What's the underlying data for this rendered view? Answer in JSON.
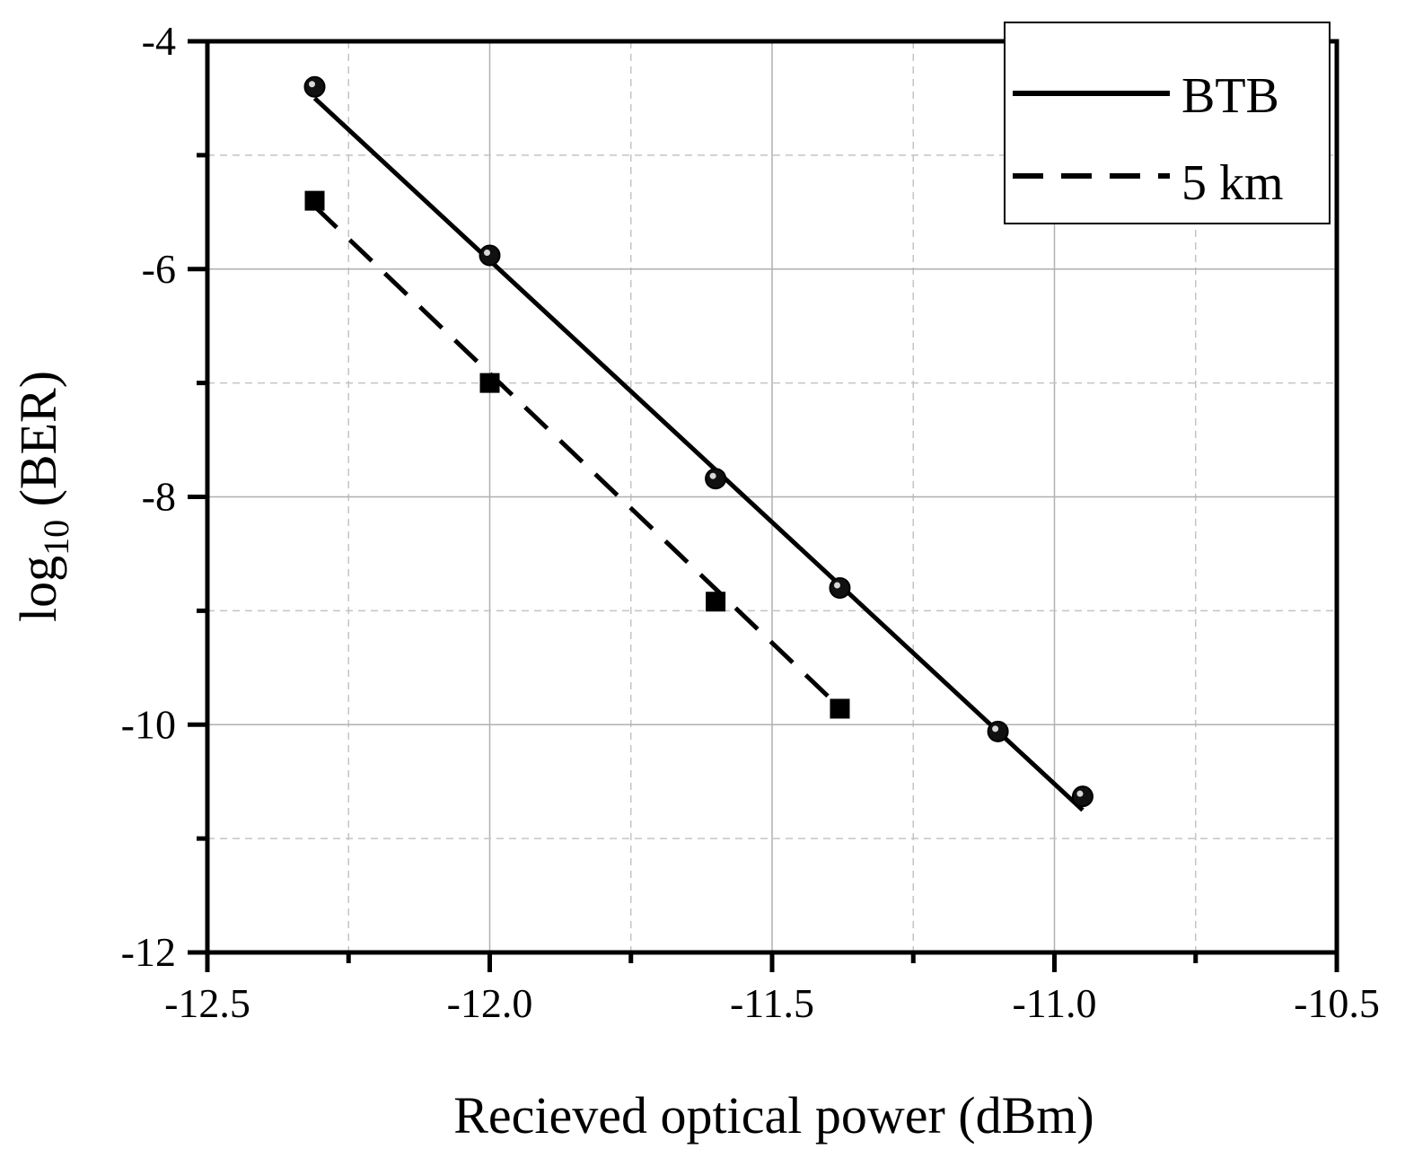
{
  "chart_data": {
    "type": "line",
    "xlabel": "Recieved optical power (dBm)",
    "ylabel_main": "log",
    "ylabel_sub": "10",
    "ylabel_suffix": " (BER)",
    "xlim": [
      -12.5,
      -10.5
    ],
    "ylim": [
      -12,
      -4
    ],
    "x_ticks": [
      -12.5,
      -12.0,
      -11.5,
      -11.0,
      -10.5
    ],
    "x_tick_labels": [
      "-12.5",
      "-12.0",
      "-11.5",
      "-11.0",
      "-10.5"
    ],
    "y_ticks": [
      -4,
      -6,
      -8,
      -10,
      -12
    ],
    "y_tick_labels": [
      "-4",
      "-6",
      "-8",
      "-10",
      "-12"
    ],
    "x_minor_ticks": [
      -12.25,
      -11.75,
      -11.25,
      -10.75
    ],
    "y_minor_ticks": [
      -5,
      -7,
      -9,
      -11
    ],
    "grid": true,
    "legend_position": "top-right",
    "series": [
      {
        "name": "BTB",
        "line_style": "solid",
        "marker": "circle",
        "color": "#000000",
        "points": [
          {
            "x": -12.31,
            "y": -4.4
          },
          {
            "x": -12.0,
            "y": -5.88
          },
          {
            "x": -11.6,
            "y": -7.84
          },
          {
            "x": -11.38,
            "y": -8.8
          },
          {
            "x": -11.1,
            "y": -10.06
          },
          {
            "x": -10.95,
            "y": -10.63
          }
        ],
        "fit": [
          {
            "x": -12.31,
            "y": -4.5
          },
          {
            "x": -10.95,
            "y": -10.75
          }
        ]
      },
      {
        "name": "5 km",
        "line_style": "dashed",
        "marker": "square",
        "color": "#000000",
        "points": [
          {
            "x": -12.31,
            "y": -5.4
          },
          {
            "x": -12.0,
            "y": -7.0
          },
          {
            "x": -11.6,
            "y": -8.92
          },
          {
            "x": -11.38,
            "y": -9.86
          }
        ],
        "fit": [
          {
            "x": -12.31,
            "y": -5.45
          },
          {
            "x": -11.38,
            "y": -9.85
          }
        ]
      }
    ]
  }
}
